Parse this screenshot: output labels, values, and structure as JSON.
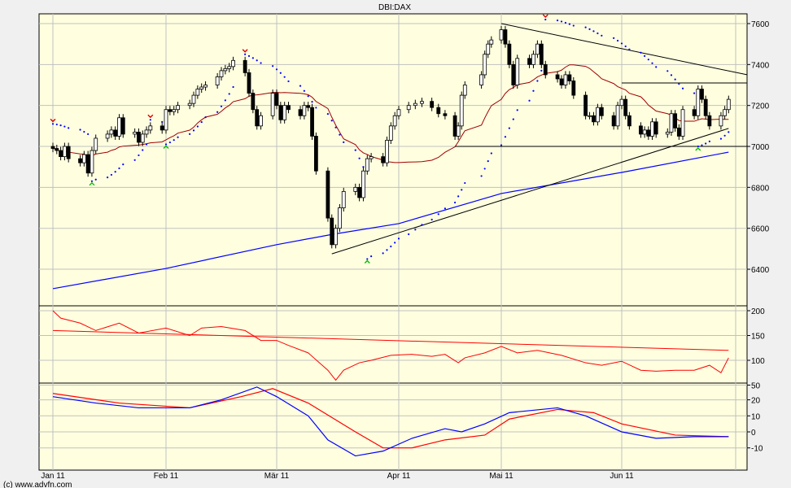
{
  "chart_data": {
    "type": "candlestick",
    "title": "DBI:DAX",
    "footer": "(c) www.advfn.com",
    "x_ticks": [
      {
        "label": "Jan 11",
        "date": "2011-01-03"
      },
      {
        "label": "Feb 11",
        "date": "2011-02-01"
      },
      {
        "label": "Mär 11",
        "date": "2011-03-01"
      },
      {
        "label": "Apr 11",
        "date": "2011-04-01"
      },
      {
        "label": "Mai 11",
        "date": "2011-05-02"
      },
      {
        "label": "Jun 11",
        "date": "2011-06-01"
      }
    ],
    "colors": {
      "background": "#f0f0f0",
      "plot": "#ffffe0",
      "grid": "#c0c0c0",
      "ma_short": "#a00000",
      "ma_long": "#0000ff",
      "sar": "#0000ff",
      "sar_up_marker": "#00c000",
      "sar_down_marker": "#e00000",
      "osc": "#ff0000",
      "macd": "#0000ff",
      "signal": "#ff0000"
    },
    "price_panel": {
      "ylim": [
        6280,
        7650
      ],
      "y_ticks": [
        7600,
        7400,
        7200,
        7000,
        6800,
        6600,
        6400
      ],
      "closes": [
        [
          "2011-01-03",
          6990
        ],
        [
          "2011-01-04",
          6980
        ],
        [
          "2011-01-05",
          6950
        ],
        [
          "2011-01-06",
          7000
        ],
        [
          "2011-01-07",
          6940
        ],
        [
          "2011-01-10",
          6920
        ],
        [
          "2011-01-11",
          6960
        ],
        [
          "2011-01-12",
          6870
        ],
        [
          "2011-01-13",
          6980
        ],
        [
          "2011-01-14",
          7040
        ],
        [
          "2011-01-17",
          7060
        ],
        [
          "2011-01-18",
          7080
        ],
        [
          "2011-01-19",
          7050
        ],
        [
          "2011-01-20",
          7140
        ],
        [
          "2011-01-21",
          7060
        ],
        [
          "2011-01-24",
          7070
        ],
        [
          "2011-01-25",
          7020
        ],
        [
          "2011-01-26",
          7060
        ],
        [
          "2011-01-27",
          7080
        ],
        [
          "2011-01-28",
          7100
        ],
        [
          "2011-01-31",
          7080
        ],
        [
          "2011-02-01",
          7180
        ],
        [
          "2011-02-02",
          7170
        ],
        [
          "2011-02-03",
          7180
        ],
        [
          "2011-02-04",
          7200
        ],
        [
          "2011-02-07",
          7210
        ],
        [
          "2011-02-08",
          7250
        ],
        [
          "2011-02-09",
          7280
        ],
        [
          "2011-02-10",
          7290
        ],
        [
          "2011-02-11",
          7300
        ],
        [
          "2011-02-14",
          7340
        ],
        [
          "2011-02-15",
          7370
        ],
        [
          "2011-02-16",
          7380
        ],
        [
          "2011-02-17",
          7390
        ],
        [
          "2011-02-18",
          7420
        ],
        [
          "2011-02-21",
          7360
        ],
        [
          "2011-02-22",
          7260
        ],
        [
          "2011-02-23",
          7180
        ],
        [
          "2011-02-24",
          7100
        ],
        [
          "2011-02-25",
          7150
        ],
        [
          "2011-02-28",
          7260
        ],
        [
          "2011-03-01",
          7200
        ],
        [
          "2011-03-02",
          7130
        ],
        [
          "2011-03-03",
          7200
        ],
        [
          "2011-03-04",
          7180
        ],
        [
          "2011-03-07",
          7150
        ],
        [
          "2011-03-08",
          7200
        ],
        [
          "2011-03-09",
          7190
        ],
        [
          "2011-03-10",
          7050
        ],
        [
          "2011-03-11",
          6880
        ],
        [
          "2011-03-14",
          6650
        ],
        [
          "2011-03-15",
          6520
        ],
        [
          "2011-03-16",
          6600
        ],
        [
          "2011-03-17",
          6700
        ],
        [
          "2011-03-18",
          6780
        ],
        [
          "2011-03-21",
          6800
        ],
        [
          "2011-03-22",
          6750
        ],
        [
          "2011-03-23",
          6880
        ],
        [
          "2011-03-24",
          6940
        ],
        [
          "2011-03-25",
          6950
        ],
        [
          "2011-03-28",
          6920
        ],
        [
          "2011-03-29",
          7030
        ],
        [
          "2011-03-30",
          7100
        ],
        [
          "2011-03-31",
          7150
        ],
        [
          "2011-04-01",
          7180
        ],
        [
          "2011-04-04",
          7200
        ],
        [
          "2011-04-06",
          7210
        ],
        [
          "2011-04-08",
          7220
        ],
        [
          "2011-04-11",
          7190
        ],
        [
          "2011-04-13",
          7160
        ],
        [
          "2011-04-15",
          7150
        ],
        [
          "2011-04-18",
          7050
        ],
        [
          "2011-04-19",
          7100
        ],
        [
          "2011-04-20",
          7250
        ],
        [
          "2011-04-21",
          7300
        ],
        [
          "2011-04-26",
          7350
        ],
        [
          "2011-04-27",
          7450
        ],
        [
          "2011-04-28",
          7500
        ],
        [
          "2011-04-29",
          7520
        ],
        [
          "2011-05-02",
          7570
        ],
        [
          "2011-05-03",
          7500
        ],
        [
          "2011-05-04",
          7400
        ],
        [
          "2011-05-05",
          7300
        ],
        [
          "2011-05-06",
          7430
        ],
        [
          "2011-05-09",
          7400
        ],
        [
          "2011-05-10",
          7450
        ],
        [
          "2011-05-11",
          7500
        ],
        [
          "2011-05-12",
          7400
        ],
        [
          "2011-05-13",
          7350
        ],
        [
          "2011-05-16",
          7330
        ],
        [
          "2011-05-17",
          7300
        ],
        [
          "2011-05-18",
          7350
        ],
        [
          "2011-05-19",
          7320
        ],
        [
          "2011-05-20",
          7250
        ],
        [
          "2011-05-23",
          7150
        ],
        [
          "2011-05-24",
          7150
        ],
        [
          "2011-05-25",
          7120
        ],
        [
          "2011-05-26",
          7190
        ],
        [
          "2011-05-27",
          7150
        ],
        [
          "2011-05-30",
          7100
        ],
        [
          "2011-05-31",
          7200
        ],
        [
          "2011-06-01",
          7230
        ],
        [
          "2011-06-02",
          7150
        ],
        [
          "2011-06-03",
          7100
        ],
        [
          "2011-06-06",
          7060
        ],
        [
          "2011-06-07",
          7080
        ],
        [
          "2011-06-08",
          7050
        ],
        [
          "2011-06-09",
          7120
        ],
        [
          "2011-06-10",
          7060
        ],
        [
          "2011-06-13",
          7070
        ],
        [
          "2011-06-14",
          7160
        ],
        [
          "2011-06-15",
          7090
        ],
        [
          "2011-06-16",
          7050
        ],
        [
          "2011-06-17",
          7180
        ],
        [
          "2011-06-20",
          7150
        ],
        [
          "2011-06-21",
          7280
        ],
        [
          "2011-06-22",
          7230
        ],
        [
          "2011-06-23",
          7150
        ],
        [
          "2011-06-24",
          7100
        ],
        [
          "2011-06-27",
          7150
        ],
        [
          "2011-06-28",
          7180
        ],
        [
          "2011-06-29",
          7230
        ]
      ],
      "ma_long": [
        [
          "2011-01-03",
          6305
        ],
        [
          "2011-02-01",
          6404
        ],
        [
          "2011-03-01",
          6520
        ],
        [
          "2011-03-15",
          6570
        ],
        [
          "2011-04-01",
          6623
        ],
        [
          "2011-05-02",
          6770
        ],
        [
          "2011-06-01",
          6873
        ],
        [
          "2011-06-29",
          6972
        ]
      ],
      "sar_segments": [
        {
          "trend": "down",
          "start": "2011-01-03",
          "end": "2011-01-12",
          "from": 7110,
          "to": 7060
        },
        {
          "trend": "up",
          "start": "2011-01-13",
          "end": "2011-01-27",
          "from": 6830,
          "to": 7010
        },
        {
          "trend": "down",
          "start": "2011-01-28",
          "end": "2011-01-31",
          "from": 7130,
          "to": 7120
        },
        {
          "trend": "up",
          "start": "2011-02-01",
          "end": "2011-02-18",
          "from": 7010,
          "to": 7290
        },
        {
          "trend": "down",
          "start": "2011-02-21",
          "end": "2011-03-23",
          "from": 7450,
          "to": 6900
        },
        {
          "trend": "up",
          "start": "2011-03-24",
          "end": "2011-05-12",
          "from": 6450,
          "to": 7370
        },
        {
          "trend": "down",
          "start": "2011-05-13",
          "end": "2011-06-20",
          "from": 7620,
          "to": 7260
        },
        {
          "trend": "up",
          "start": "2011-06-21",
          "end": "2011-06-29",
          "from": 7000,
          "to": 7070
        }
      ],
      "trendlines": [
        {
          "from": [
            "2011-03-15",
            6475
          ],
          "to": [
            "2011-06-29",
            7088
          ]
        },
        {
          "from": [
            "2011-05-02",
            7600
          ],
          "to": [
            "2011-07-04",
            7350
          ]
        },
        {
          "from": [
            "2011-04-18",
            7000
          ],
          "to": [
            "2011-07-04",
            7000
          ]
        },
        {
          "from": [
            "2011-06-01",
            7310
          ],
          "to": [
            "2011-07-04",
            7310
          ]
        }
      ]
    },
    "oscillator_panel": {
      "ylim": [
        50,
        215
      ],
      "y_ticks": [
        200,
        150,
        100,
        50
      ],
      "series": [
        [
          "2011-01-03",
          200
        ],
        [
          "2011-01-05",
          185
        ],
        [
          "2011-01-10",
          175
        ],
        [
          "2011-01-14",
          160
        ],
        [
          "2011-01-20",
          175
        ],
        [
          "2011-01-25",
          155
        ],
        [
          "2011-02-01",
          165
        ],
        [
          "2011-02-07",
          150
        ],
        [
          "2011-02-10",
          165
        ],
        [
          "2011-02-15",
          168
        ],
        [
          "2011-02-21",
          160
        ],
        [
          "2011-02-25",
          140
        ],
        [
          "2011-03-01",
          140
        ],
        [
          "2011-03-04",
          130
        ],
        [
          "2011-03-09",
          115
        ],
        [
          "2011-03-14",
          80
        ],
        [
          "2011-03-16",
          60
        ],
        [
          "2011-03-18",
          80
        ],
        [
          "2011-03-22",
          95
        ],
        [
          "2011-03-25",
          100
        ],
        [
          "2011-03-30",
          110
        ],
        [
          "2011-04-05",
          112
        ],
        [
          "2011-04-11",
          108
        ],
        [
          "2011-04-15",
          112
        ],
        [
          "2011-04-19",
          95
        ],
        [
          "2011-04-21",
          105
        ],
        [
          "2011-04-27",
          115
        ],
        [
          "2011-05-02",
          128
        ],
        [
          "2011-05-06",
          115
        ],
        [
          "2011-05-11",
          120
        ],
        [
          "2011-05-17",
          110
        ],
        [
          "2011-05-23",
          95
        ],
        [
          "2011-05-27",
          90
        ],
        [
          "2011-06-01",
          98
        ],
        [
          "2011-06-06",
          80
        ],
        [
          "2011-06-10",
          78
        ],
        [
          "2011-06-15",
          80
        ],
        [
          "2011-06-20",
          80
        ],
        [
          "2011-06-24",
          90
        ],
        [
          "2011-06-27",
          75
        ],
        [
          "2011-06-29",
          105
        ]
      ],
      "average": [
        [
          "2011-01-03",
          160
        ],
        [
          "2011-06-29",
          120
        ]
      ]
    },
    "macd_panel": {
      "ylim": [
        -22,
        28
      ],
      "y_ticks": [
        20,
        10,
        0,
        -10
      ],
      "macd": [
        [
          "2011-01-03",
          22
        ],
        [
          "2011-01-14",
          18
        ],
        [
          "2011-01-25",
          15
        ],
        [
          "2011-02-07",
          15
        ],
        [
          "2011-02-15",
          20
        ],
        [
          "2011-02-24",
          28
        ],
        [
          "2011-03-01",
          22
        ],
        [
          "2011-03-09",
          10
        ],
        [
          "2011-03-14",
          -5
        ],
        [
          "2011-03-21",
          -15
        ],
        [
          "2011-03-28",
          -12
        ],
        [
          "2011-04-05",
          -4
        ],
        [
          "2011-04-15",
          2
        ],
        [
          "2011-04-20",
          0
        ],
        [
          "2011-04-27",
          5
        ],
        [
          "2011-05-04",
          12
        ],
        [
          "2011-05-16",
          15
        ],
        [
          "2011-05-23",
          10
        ],
        [
          "2011-06-01",
          0
        ],
        [
          "2011-06-10",
          -4
        ],
        [
          "2011-06-20",
          -3
        ],
        [
          "2011-06-29",
          -3
        ]
      ],
      "signal": [
        [
          "2011-01-03",
          24
        ],
        [
          "2011-01-20",
          18
        ],
        [
          "2011-02-07",
          15
        ],
        [
          "2011-02-20",
          22
        ],
        [
          "2011-02-28",
          27
        ],
        [
          "2011-03-09",
          18
        ],
        [
          "2011-03-21",
          0
        ],
        [
          "2011-03-28",
          -10
        ],
        [
          "2011-04-05",
          -10
        ],
        [
          "2011-04-15",
          -5
        ],
        [
          "2011-04-27",
          -2
        ],
        [
          "2011-05-04",
          8
        ],
        [
          "2011-05-16",
          14
        ],
        [
          "2011-05-25",
          12
        ],
        [
          "2011-06-01",
          5
        ],
        [
          "2011-06-15",
          -2
        ],
        [
          "2011-06-29",
          -3
        ]
      ]
    }
  }
}
